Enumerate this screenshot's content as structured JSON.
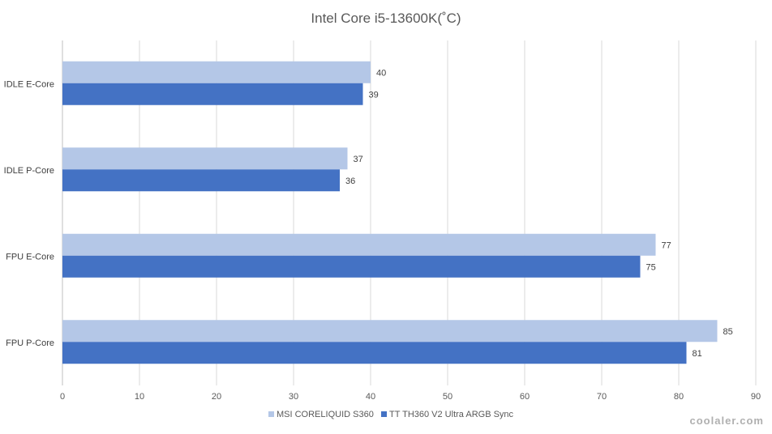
{
  "chart_data": {
    "type": "bar",
    "orientation": "horizontal",
    "title": "Intel Core i5-13600K(˚C)",
    "categories": [
      "IDLE E-Core",
      "IDLE P-Core",
      "FPU E-Core",
      "FPU P-Core"
    ],
    "series": [
      {
        "name": "MSI CORELIQUID S360",
        "color": "#b4c7e7",
        "values": [
          40,
          37,
          77,
          85
        ]
      },
      {
        "name": "TT TH360 V2 Ultra ARGB Sync",
        "color": "#4472c4",
        "values": [
          39,
          36,
          75,
          81
        ]
      }
    ],
    "xlim": [
      0,
      90
    ],
    "xticks": [
      0,
      10,
      20,
      30,
      40,
      50,
      60,
      70,
      80,
      90
    ],
    "xlabel": "",
    "ylabel": "",
    "grid": true,
    "legend_position": "bottom"
  },
  "watermark": {
    "text": "coolaler.com",
    "color": "#b0b0b0"
  }
}
